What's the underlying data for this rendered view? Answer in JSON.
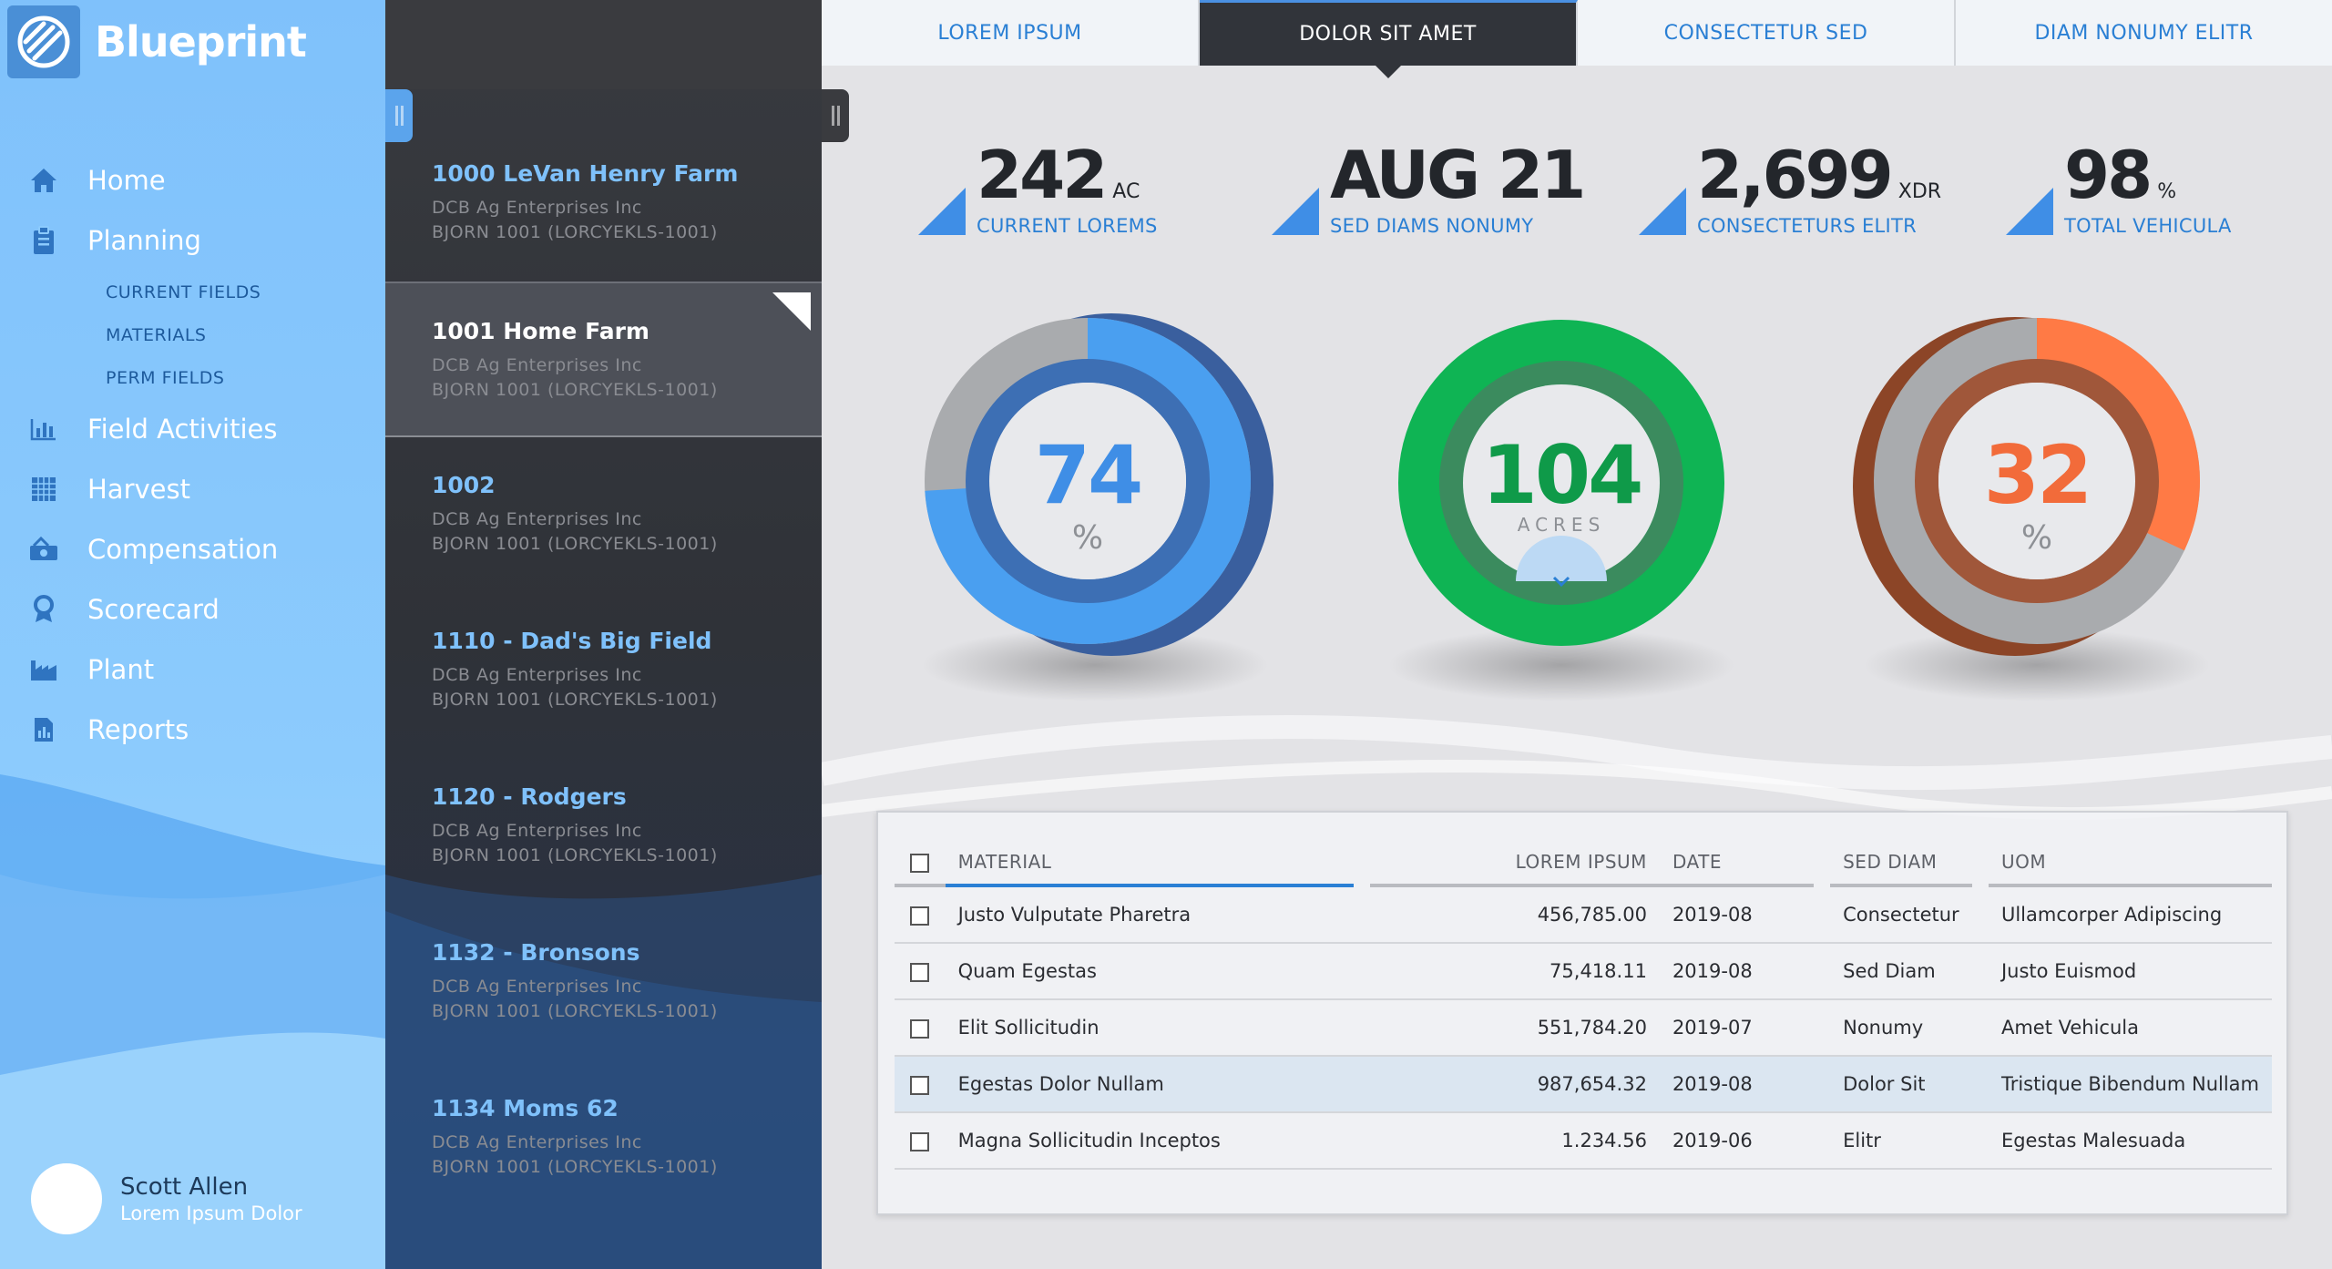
{
  "brand": {
    "name": "Blueprint",
    "logo_icon": "blueprint-logo-icon"
  },
  "sidebar": {
    "nav": [
      {
        "label": "Home",
        "icon": "home-icon"
      },
      {
        "label": "Planning",
        "icon": "clipboard-icon",
        "children": [
          "CURRENT FIELDS",
          "MATERIALS",
          "PERM FIELDS"
        ]
      },
      {
        "label": "Field Activities",
        "icon": "bar-chart-icon"
      },
      {
        "label": "Harvest",
        "icon": "grid-icon"
      },
      {
        "label": "Compensation",
        "icon": "money-icon"
      },
      {
        "label": "Scorecard",
        "icon": "award-icon"
      },
      {
        "label": "Plant",
        "icon": "factory-icon"
      },
      {
        "label": "Reports",
        "icon": "report-icon"
      }
    ],
    "user": {
      "name": "Scott Allen",
      "subtitle": "Lorem Ipsum Dolor"
    }
  },
  "farms": [
    {
      "title": "1000 LeVan Henry Farm",
      "company": "DCB Ag Enterprises Inc",
      "code": "BJORN 1001 (LORCYEKLS-1001)",
      "active": false
    },
    {
      "title": "1001 Home Farm",
      "company": "DCB Ag Enterprises Inc",
      "code": "BJORN 1001 (LORCYEKLS-1001)",
      "active": true
    },
    {
      "title": "1002",
      "company": "DCB Ag Enterprises Inc",
      "code": "BJORN 1001 (LORCYEKLS-1001)",
      "active": false
    },
    {
      "title": "1110 - Dad's Big Field",
      "company": "DCB Ag Enterprises Inc",
      "code": "BJORN 1001 (LORCYEKLS-1001)",
      "active": false
    },
    {
      "title": "1120 - Rodgers",
      "company": "DCB Ag Enterprises Inc",
      "code": "BJORN 1001 (LORCYEKLS-1001)",
      "active": false
    },
    {
      "title": "1132 - Bronsons",
      "company": "DCB Ag Enterprises Inc",
      "code": "BJORN 1001 (LORCYEKLS-1001)",
      "active": false
    },
    {
      "title": "1134 Moms 62",
      "company": "DCB Ag Enterprises Inc",
      "code": "BJORN 1001 (LORCYEKLS-1001)",
      "active": false
    }
  ],
  "tabs": [
    {
      "label": "LOREM IPSUM",
      "active": false
    },
    {
      "label": "DOLOR SIT AMET",
      "active": true
    },
    {
      "label": "CONSECTETUR SED",
      "active": false
    },
    {
      "label": "DIAM NONUMY ELITR",
      "active": false
    }
  ],
  "stats": [
    {
      "value": "242",
      "unit": "AC",
      "label": "CURRENT LOREMS"
    },
    {
      "value": "AUG 21",
      "unit": "",
      "label": "SED DIAMS NONUMY"
    },
    {
      "value": "2,699",
      "unit": "XDR",
      "label": "CONSECTETURS ELITR"
    },
    {
      "value": "98",
      "unit": "%",
      "label": "TOTAL VEHICULA"
    }
  ],
  "donuts": [
    {
      "value": "74",
      "unit": "%",
      "fraction": 0.74,
      "color": "#4a9ff0",
      "rest_color": "#a9abae",
      "value_color": "#3f8ee6"
    },
    {
      "value": "104",
      "unit": "ACRES",
      "fraction": 1.0,
      "color": "#0fb454",
      "rest_color": "#0fb454",
      "value_color": "#0f9a49",
      "toggle_icon": "chevron-down-icon"
    },
    {
      "value": "32",
      "unit": "%",
      "fraction": 0.32,
      "color": "#ff7a45",
      "rest_color": "#a9abae",
      "value_color": "#f26b3a"
    }
  ],
  "table": {
    "columns": [
      "MATERIAL",
      "LOREM IPSUM",
      "DATE",
      "SED DIAM",
      "UOM"
    ],
    "rows": [
      {
        "material": "Justo Vulputate Pharetra",
        "amount": "456,785.00",
        "date": "2019-08",
        "diam": "Consectetur",
        "uom": "Ullamcorper Adipiscing",
        "highlight": false
      },
      {
        "material": "Quam Egestas",
        "amount": "75,418.11",
        "date": "2019-08",
        "diam": "Sed Diam",
        "uom": "Justo Euismod",
        "highlight": false
      },
      {
        "material": "Elit Sollicitudin",
        "amount": "551,784.20",
        "date": "2019-07",
        "diam": "Nonumy",
        "uom": "Amet Vehicula",
        "highlight": false
      },
      {
        "material": "Egestas Dolor Nullam",
        "amount": "987,654.32",
        "date": "2019-08",
        "diam": "Dolor Sit",
        "uom": "Tristique Bibendum Nullam",
        "highlight": true
      },
      {
        "material": "Magna Sollicitudin Inceptos",
        "amount": "1.234.56",
        "date": "2019-06",
        "diam": "Elitr",
        "uom": "Egestas Malesuada",
        "highlight": false
      }
    ]
  },
  "colors": {
    "accent": "#2a7fd4",
    "sidebar": "#8ccbfd",
    "dark_panel": "#31343a"
  }
}
